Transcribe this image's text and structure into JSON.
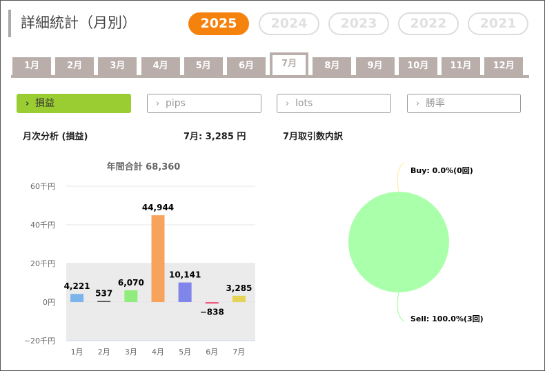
{
  "page_title": "詳細統計（月別）",
  "years": [
    {
      "label": "2025",
      "active": true
    },
    {
      "label": "2024",
      "active": false
    },
    {
      "label": "2023",
      "active": false
    },
    {
      "label": "2022",
      "active": false
    },
    {
      "label": "2021",
      "active": false
    }
  ],
  "months": [
    {
      "label": "1月",
      "active": false
    },
    {
      "label": "2月",
      "active": false
    },
    {
      "label": "3月",
      "active": false
    },
    {
      "label": "4月",
      "active": false
    },
    {
      "label": "5月",
      "active": false
    },
    {
      "label": "6月",
      "active": false
    },
    {
      "label": "7月",
      "active": true
    },
    {
      "label": "8月",
      "active": false
    },
    {
      "label": "9月",
      "active": false
    },
    {
      "label": "10月",
      "active": false
    },
    {
      "label": "11月",
      "active": false
    },
    {
      "label": "12月",
      "active": false
    }
  ],
  "metrics": [
    {
      "label": "損益",
      "active": true
    },
    {
      "label": "pips",
      "active": false
    },
    {
      "label": "lots",
      "active": false
    },
    {
      "label": "勝率",
      "active": false
    }
  ],
  "monthly_analysis": {
    "title": "月次分析 (損益)",
    "month_value": "7月:  3,285 円"
  },
  "trade_breakdown": {
    "title": "7月取引数内訳"
  },
  "colors": {
    "accent": "#f5820d",
    "metric_active": "#9acd32",
    "tab": "#b9aeaa",
    "pie_sell": "#aaffaa"
  },
  "chart_data": [
    {
      "type": "bar",
      "title": "年間合計 68,360",
      "categories": [
        "1月",
        "2月",
        "3月",
        "4月",
        "5月",
        "6月",
        "7月"
      ],
      "values": [
        4221,
        537,
        6070,
        44944,
        10141,
        -838,
        3285
      ],
      "value_labels": [
        "4,221",
        "537",
        "6,070",
        "44,944",
        "10,141",
        "−838",
        "3,285"
      ],
      "bar_colors": [
        "#7cb5ec",
        "#434348",
        "#90ed7d",
        "#f7a35c",
        "#8085e9",
        "#f15c80",
        "#e4d354"
      ],
      "ylim": [
        -20000,
        60000
      ],
      "yticks": [
        -20000,
        0,
        20000,
        40000,
        60000
      ],
      "ytick_labels": [
        "−20千円",
        "0円",
        "20千円",
        "40千円",
        "60千円"
      ],
      "bands": [
        [
          0,
          20000
        ],
        [
          -20000,
          0
        ]
      ],
      "xlabel": "",
      "ylabel": ""
    },
    {
      "type": "pie",
      "slices": [
        {
          "label": "Buy: 0.0%(0回)",
          "value": 0.0,
          "count": 0,
          "color": "#ffeeaa"
        },
        {
          "label": "Sell: 100.0%(3回)",
          "value": 100.0,
          "count": 3,
          "color": "#aaffaa"
        }
      ]
    }
  ]
}
